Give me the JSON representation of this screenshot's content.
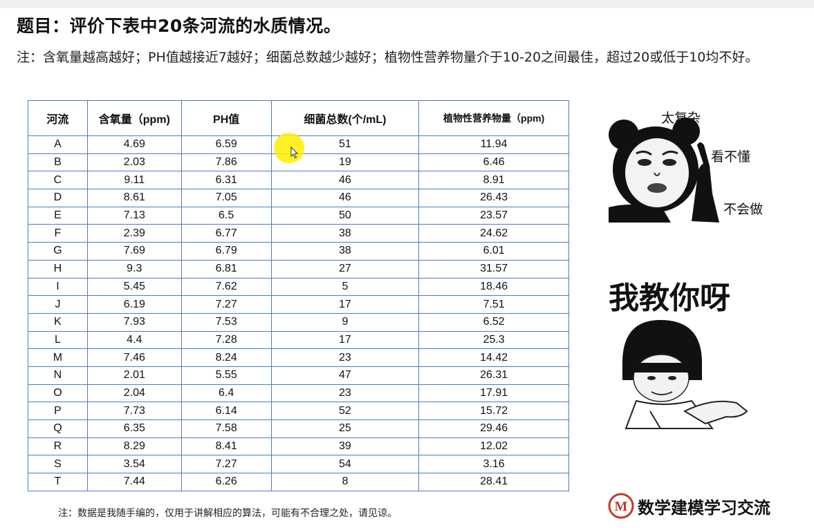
{
  "title": "题目：评价下表中20条河流的水质情况。",
  "note": "注：含氧量越高越好；PH值越接近7越好；细菌总数越少越好；植物性营养物量介于10-20之间最佳，超过20或低于10均不好。",
  "table": {
    "headers": [
      "河流",
      "含氧量（ppm)",
      "PH值",
      "细菌总数(个/mL)",
      "植物性营养物量（ppm)"
    ],
    "rows": [
      [
        "A",
        "4.69",
        "6.59",
        "51",
        "11.94"
      ],
      [
        "B",
        "2.03",
        "7.86",
        "19",
        "6.46"
      ],
      [
        "C",
        "9.11",
        "6.31",
        "46",
        "8.91"
      ],
      [
        "D",
        "8.61",
        "7.05",
        "46",
        "26.43"
      ],
      [
        "E",
        "7.13",
        "6.5",
        "50",
        "23.57"
      ],
      [
        "F",
        "2.39",
        "6.77",
        "38",
        "24.62"
      ],
      [
        "G",
        "7.69",
        "6.79",
        "38",
        "6.01"
      ],
      [
        "H",
        "9.3",
        "6.81",
        "27",
        "31.57"
      ],
      [
        "I",
        "5.45",
        "7.62",
        "5",
        "18.46"
      ],
      [
        "J",
        "6.19",
        "7.27",
        "17",
        "7.51"
      ],
      [
        "K",
        "7.93",
        "7.53",
        "9",
        "6.52"
      ],
      [
        "L",
        "4.4",
        "7.28",
        "17",
        "25.3"
      ],
      [
        "M",
        "7.46",
        "8.24",
        "23",
        "14.42"
      ],
      [
        "N",
        "2.01",
        "5.55",
        "47",
        "26.31"
      ],
      [
        "O",
        "2.04",
        "6.4",
        "23",
        "17.91"
      ],
      [
        "P",
        "7.73",
        "6.14",
        "52",
        "15.72"
      ],
      [
        "Q",
        "6.35",
        "7.58",
        "25",
        "29.46"
      ],
      [
        "R",
        "8.29",
        "8.41",
        "39",
        "12.02"
      ],
      [
        "S",
        "3.54",
        "7.27",
        "54",
        "3.16"
      ],
      [
        "T",
        "7.44",
        "6.26",
        "8",
        "28.41"
      ]
    ]
  },
  "footnote": "注：数据是我随手编的，仅用于讲解相应的算法，可能有不合理之处，请见谅。",
  "meme1": {
    "text1": "太复杂",
    "text2": "看不懂",
    "text3": "不会做"
  },
  "meme2": {
    "caption": "我教你呀"
  },
  "logo": {
    "letter": "M",
    "text": "数学建模学习交流",
    "color": "#c0392b"
  },
  "colors": {
    "table_border": "#4f79c2",
    "highlight": "#ffee00"
  }
}
